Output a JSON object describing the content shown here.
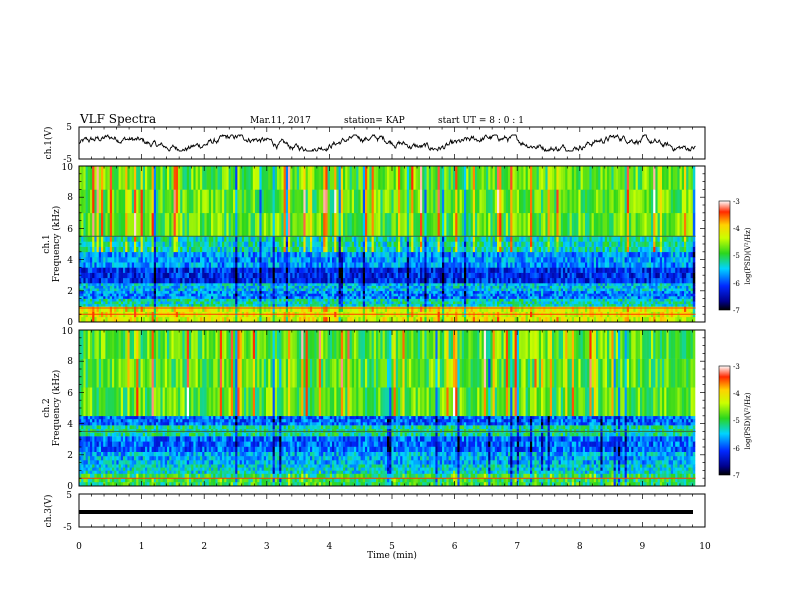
{
  "header": {
    "title": "VLF Spectra",
    "date": "Mar.11, 2017",
    "station": "station= KAP",
    "start": "start UT =  8 : 0 : 1"
  },
  "chart_data": [
    {
      "type": "line",
      "panel": "ch1-waveform",
      "ylabel": "ch.1(V)",
      "ylim": [
        -5,
        5
      ],
      "y_ticks": [
        "5",
        "-5"
      ],
      "x_range_min": [
        0,
        9.85
      ],
      "approx_level": 0,
      "approx_amplitude": 2.5
    },
    {
      "type": "heatmap",
      "panel": "ch1-spectrogram",
      "ylabel_lines": [
        "ch.1",
        "Frequency (kHz)"
      ],
      "ylim": [
        0,
        10
      ],
      "y_ticks": [
        "0",
        "2",
        "4",
        "6",
        "8",
        "10"
      ],
      "x_range_min": [
        0,
        9.85
      ],
      "bands": [
        {
          "from_khz": 0,
          "to_khz": 1,
          "level": -4.2
        },
        {
          "from_khz": 1,
          "to_khz": 1.5,
          "level": -5.3
        },
        {
          "from_khz": 1.5,
          "to_khz": 2.0,
          "level": -5.8
        },
        {
          "from_khz": 2.0,
          "to_khz": 2.5,
          "level": -5.5
        },
        {
          "from_khz": 2.5,
          "to_khz": 3.5,
          "level": -6.2
        },
        {
          "from_khz": 3.5,
          "to_khz": 4.5,
          "level": -5.7
        },
        {
          "from_khz": 4.5,
          "to_khz": 5.5,
          "level": -5.3
        },
        {
          "from_khz": 5.5,
          "to_khz": 10,
          "level": -4.8
        }
      ],
      "lines_khz": [
        0.5,
        0.9,
        5.5
      ],
      "colorbar": {
        "label": "log(PSD)(V²/Hz)",
        "range": [
          -7,
          -3
        ],
        "ticks": [
          "-3",
          "-4",
          "-5",
          "-6",
          "-7"
        ]
      }
    },
    {
      "type": "heatmap",
      "panel": "ch2-spectrogram",
      "ylabel_lines": [
        "ch.2",
        "Frequency (kHz)"
      ],
      "ylim": [
        0,
        10
      ],
      "y_ticks": [
        "0",
        "2",
        "4",
        "6",
        "8",
        "10"
      ],
      "x_range_min": [
        0,
        9.85
      ],
      "bands": [
        {
          "from_khz": 0,
          "to_khz": 0.8,
          "level": -5.0
        },
        {
          "from_khz": 0.8,
          "to_khz": 1.4,
          "level": -5.4
        },
        {
          "from_khz": 1.4,
          "to_khz": 2.2,
          "level": -5.6
        },
        {
          "from_khz": 2.2,
          "to_khz": 3.2,
          "level": -5.9
        },
        {
          "from_khz": 3.2,
          "to_khz": 3.9,
          "level": -5.2
        },
        {
          "from_khz": 3.9,
          "to_khz": 4.5,
          "level": -5.9
        },
        {
          "from_khz": 4.5,
          "to_khz": 10,
          "level": -4.8
        }
      ],
      "lines_khz": [
        0.5,
        3.5
      ],
      "colorbar": {
        "label": "log(PSD)(V²/Hz)",
        "range": [
          -7,
          -3
        ],
        "ticks": [
          "-3",
          "-4",
          "-5",
          "-6",
          "-7"
        ]
      }
    },
    {
      "type": "line",
      "panel": "ch3-waveform",
      "ylabel": "ch.3(V)",
      "ylim": [
        -5,
        5
      ],
      "y_ticks": [
        "5",
        "-5"
      ],
      "x_range_min": [
        0,
        9.85
      ],
      "constant_value": 0
    }
  ],
  "xaxis": {
    "label": "Time (min)",
    "range": [
      0,
      10
    ],
    "ticks": [
      "0",
      "1",
      "2",
      "3",
      "4",
      "5",
      "6",
      "7",
      "8",
      "9",
      "10"
    ]
  },
  "colors": {
    "trace": "#000000",
    "frame": "#000000"
  }
}
